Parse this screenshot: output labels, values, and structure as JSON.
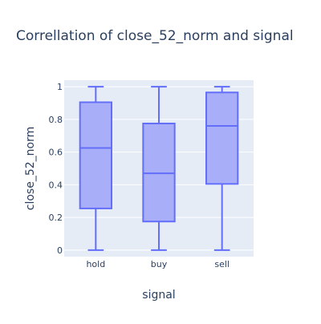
{
  "chart_data": {
    "type": "box",
    "title": "Correllation of close_52_norm and signal",
    "xlabel": "signal",
    "ylabel": "close_52_norm",
    "ylim": [
      -0.04,
      1.04
    ],
    "yticks": [
      0,
      0.2,
      0.4,
      0.6,
      0.8,
      1
    ],
    "ytick_labels": [
      "0",
      "0.2",
      "0.4",
      "0.6",
      "0.8",
      "1"
    ],
    "grid": true,
    "categories": [
      "hold",
      "buy",
      "sell"
    ],
    "boxes": [
      {
        "category": "hold",
        "min": 0,
        "q1": 0.255,
        "median": 0.625,
        "q3": 0.905,
        "max": 1
      },
      {
        "category": "buy",
        "min": 0,
        "q1": 0.175,
        "median": 0.47,
        "q3": 0.775,
        "max": 1
      },
      {
        "category": "sell",
        "min": 0,
        "q1": 0.405,
        "median": 0.76,
        "q3": 0.965,
        "max": 1
      }
    ],
    "colors": {
      "box_line": "#636efa",
      "box_fill": "#a8aef7",
      "plot_bg": "#e5ecf6",
      "grid": "#ffffff",
      "text": "#2a3f5f"
    }
  }
}
